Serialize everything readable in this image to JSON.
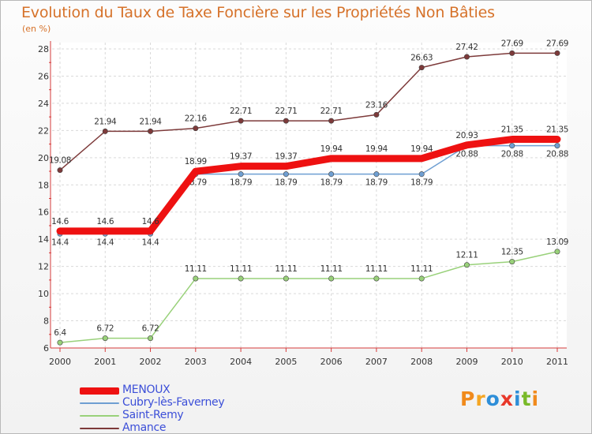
{
  "title": "Evolution du Taux de Taxe Foncière sur les Propriétés Non Bâties",
  "subtitle": "(en %)",
  "brand": {
    "text": "Proxiti",
    "colors": [
      "#f08a1c",
      "#f5a623",
      "#2e8ed8",
      "#e8382a",
      "#2e8ed8",
      "#79b928",
      "#f08a1c"
    ]
  },
  "chart_data": {
    "type": "line",
    "title": "Evolution du Taux de Taxe Foncière sur les Propriétés Non Bâties",
    "ylabel": "(en %)",
    "xlabel": "",
    "x": [
      "2000",
      "2001",
      "2002",
      "2003",
      "2004",
      "2005",
      "2006",
      "2007",
      "2008",
      "2009",
      "2010",
      "2011"
    ],
    "ylim": [
      6,
      28
    ],
    "yticks": [
      6,
      8,
      10,
      12,
      14,
      16,
      18,
      20,
      22,
      24,
      26,
      28
    ],
    "grid": true,
    "legend_position": "bottom-left",
    "series": [
      {
        "name": "Amance",
        "color": "#7d3a3a",
        "values": [
          19.08,
          21.94,
          21.94,
          22.16,
          22.71,
          22.71,
          22.71,
          23.16,
          26.63,
          27.42,
          27.69,
          27.69
        ],
        "labels": [
          "19.08",
          "21.94",
          "21.94",
          "22.16",
          "22.71",
          "22.71",
          "22.71",
          "23.16",
          "26.63",
          "27.42",
          "27.69",
          "27.69"
        ]
      },
      {
        "name": "Saint-Remy",
        "color": "#99d17a",
        "values": [
          6.4,
          6.72,
          6.72,
          11.11,
          11.11,
          11.11,
          11.11,
          11.11,
          11.11,
          12.11,
          12.35,
          13.09
        ],
        "labels": [
          "6.4",
          "6.72",
          "6.72",
          "11.11",
          "11.11",
          "11.11",
          "11.11",
          "11.11",
          "11.11",
          "12.11",
          "12.35",
          "13.09"
        ]
      },
      {
        "name": "Cubry-lès-Faverney",
        "color": "#6f9fd2",
        "values": [
          14.4,
          14.4,
          14.4,
          18.79,
          18.79,
          18.79,
          18.79,
          18.79,
          18.79,
          20.88,
          20.88,
          20.88
        ],
        "labels": [
          "14.4",
          "14.4",
          "14.4",
          "18.79",
          "18.79",
          "18.79",
          "18.79",
          "18.79",
          "18.79",
          "20.88",
          "20.88",
          "20.88"
        ]
      },
      {
        "name": "MENOUX",
        "color": "#ee1111",
        "values": [
          14.6,
          14.6,
          14.6,
          18.99,
          19.37,
          19.37,
          19.94,
          19.94,
          19.94,
          20.93,
          21.35,
          21.35
        ],
        "labels": [
          "14.6",
          "14.6",
          "14.6",
          "18.99",
          "19.37",
          "19.37",
          "19.94",
          "19.94",
          "19.94",
          "20.93",
          "21.35",
          "21.35"
        ]
      }
    ],
    "legend": [
      "MENOUX",
      "Cubry-lès-Faverney",
      "Saint-Remy",
      "Amance"
    ]
  }
}
